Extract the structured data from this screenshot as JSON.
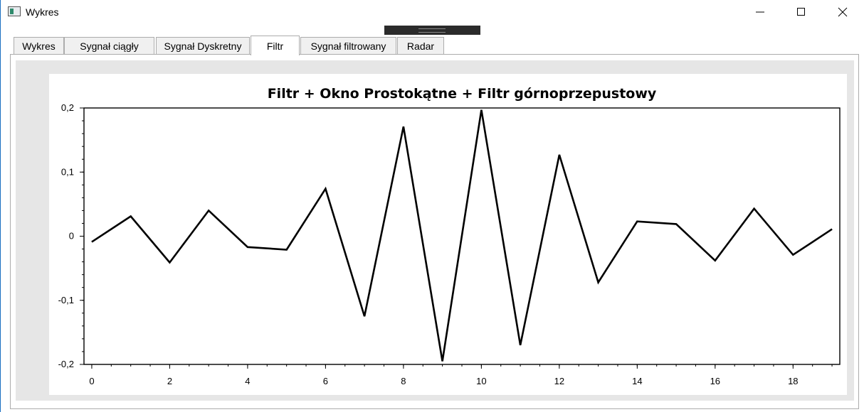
{
  "window": {
    "title": "Wykres"
  },
  "tabs": [
    {
      "label": "Wykres",
      "active": false
    },
    {
      "label": "Sygnał ciągły",
      "active": false
    },
    {
      "label": "Sygnał Dyskretny",
      "active": false
    },
    {
      "label": "Filtr",
      "active": true
    },
    {
      "label": "Sygnał filtrowany",
      "active": false
    },
    {
      "label": "Radar",
      "active": false
    }
  ],
  "chart_data": {
    "type": "line",
    "title": "Filtr + Okno Prostokątne + Filtr górnoprzepustowy",
    "xlabel": "",
    "ylabel": "",
    "x": [
      0,
      1,
      2,
      3,
      4,
      5,
      6,
      7,
      8,
      9,
      10,
      11,
      12,
      13,
      14,
      15,
      16,
      17,
      18,
      19
    ],
    "series": [
      {
        "values": [
          -0.009,
          0.031,
          -0.041,
          0.04,
          -0.017,
          -0.021,
          0.074,
          -0.125,
          0.171,
          -0.195,
          0.197,
          -0.17,
          0.127,
          -0.072,
          0.023,
          0.019,
          -0.038,
          0.043,
          -0.029,
          0.011
        ]
      }
    ],
    "xlim": [
      -0.2,
      19.2
    ],
    "ylim": [
      -0.2,
      0.2
    ],
    "xticks": [
      0,
      2,
      4,
      6,
      8,
      10,
      12,
      14,
      16,
      18
    ],
    "xtick_labels": [
      "0",
      "2",
      "4",
      "6",
      "8",
      "10",
      "12",
      "14",
      "16",
      "18"
    ],
    "yticks": [
      -0.2,
      -0.1,
      0,
      0.1,
      0.2
    ],
    "ytick_labels": [
      "-0,2",
      "-0,1",
      "0",
      "0,1",
      "0,2"
    ],
    "line_color": "#000000",
    "grid": false
  }
}
